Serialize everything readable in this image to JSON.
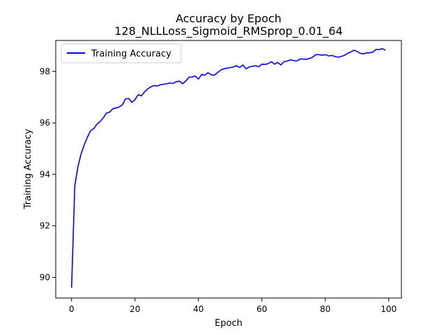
{
  "chart_data": {
    "type": "line",
    "title": "Accuracy by Epoch",
    "subtitle": "128_NLLLoss_Sigmoid_RMSprop_0.01_64",
    "xlabel": "Epoch",
    "ylabel": "Training Accuracy",
    "xlim": [
      -5,
      104
    ],
    "ylim": [
      89.2,
      99.2
    ],
    "xticks": [
      0,
      20,
      40,
      60,
      80,
      100
    ],
    "yticks": [
      90,
      92,
      94,
      96,
      98
    ],
    "grid": false,
    "legend_position": "top-left",
    "series": [
      {
        "name": "Training Accuracy",
        "color": "#0000ff",
        "x": [
          0,
          1,
          2,
          3,
          4,
          5,
          6,
          7,
          8,
          9,
          10,
          11,
          12,
          13,
          14,
          15,
          16,
          17,
          18,
          19,
          20,
          21,
          22,
          23,
          24,
          25,
          26,
          27,
          28,
          29,
          30,
          31,
          32,
          33,
          34,
          35,
          36,
          37,
          38,
          39,
          40,
          41,
          42,
          43,
          44,
          45,
          46,
          47,
          48,
          49,
          50,
          51,
          52,
          53,
          54,
          55,
          56,
          57,
          58,
          59,
          60,
          61,
          62,
          63,
          64,
          65,
          66,
          67,
          68,
          69,
          70,
          71,
          72,
          73,
          74,
          75,
          76,
          77,
          78,
          79,
          80,
          81,
          82,
          83,
          84,
          85,
          86,
          87,
          88,
          89,
          90,
          91,
          92,
          93,
          94,
          95,
          96,
          97,
          98,
          99
        ],
        "values": [
          89.6,
          93.55,
          94.3,
          94.8,
          95.15,
          95.45,
          95.7,
          95.78,
          95.95,
          96.05,
          96.2,
          96.38,
          96.42,
          96.55,
          96.58,
          96.62,
          96.7,
          96.93,
          96.95,
          96.8,
          96.9,
          97.1,
          97.05,
          97.2,
          97.32,
          97.4,
          97.45,
          97.43,
          97.48,
          97.5,
          97.52,
          97.55,
          97.53,
          97.6,
          97.62,
          97.52,
          97.62,
          97.77,
          97.78,
          97.82,
          97.7,
          97.88,
          97.85,
          97.95,
          97.87,
          97.85,
          97.95,
          98.05,
          98.1,
          98.12,
          98.15,
          98.17,
          98.22,
          98.15,
          98.25,
          98.1,
          98.17,
          98.2,
          98.22,
          98.18,
          98.28,
          98.27,
          98.3,
          98.38,
          98.28,
          98.35,
          98.25,
          98.38,
          98.4,
          98.45,
          98.42,
          98.4,
          98.48,
          98.48,
          98.47,
          98.5,
          98.55,
          98.65,
          98.65,
          98.63,
          98.65,
          98.6,
          98.62,
          98.58,
          98.55,
          98.58,
          98.62,
          98.7,
          98.75,
          98.82,
          98.78,
          98.7,
          98.68,
          98.72,
          98.72,
          98.75,
          98.85,
          98.85,
          98.88,
          98.82
        ]
      }
    ]
  }
}
